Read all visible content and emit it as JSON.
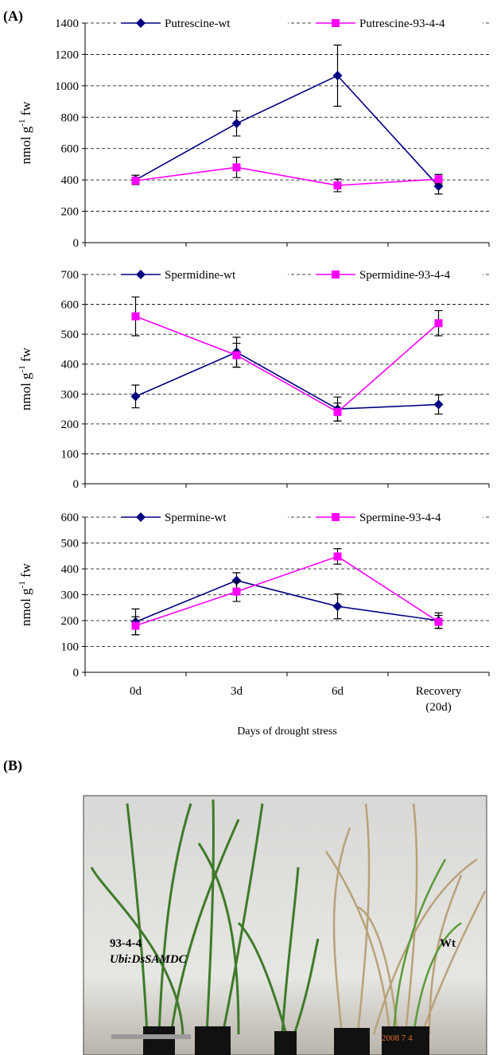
{
  "panels": {
    "a_label": "(A)",
    "b_label": "(B)"
  },
  "chart_data": [
    {
      "type": "line",
      "y_label": "nmol g",
      "y_label_sup": "-1",
      "y_label_unit": "fw",
      "categories": [
        null,
        null,
        null,
        null
      ],
      "ylim": [
        0,
        1400
      ],
      "yticks": [
        0,
        200,
        400,
        600,
        800,
        1000,
        1200,
        1400
      ],
      "grid": true,
      "legend": "top",
      "series": [
        {
          "name": "Putrescine-wt",
          "color": "#000080",
          "marker": "diamond",
          "values": [
            400,
            760,
            1065,
            360
          ],
          "errors": [
            30,
            80,
            195,
            50
          ]
        },
        {
          "name": "Putrescine-93-4-4",
          "color": "#ff00ff",
          "marker": "square",
          "values": [
            395,
            480,
            365,
            405
          ],
          "errors": [
            20,
            65,
            40,
            30
          ]
        }
      ]
    },
    {
      "type": "line",
      "y_label": "nmol g",
      "y_label_sup": "-1",
      "y_label_unit": "fw",
      "categories": [
        null,
        null,
        null,
        null
      ],
      "ylim": [
        0,
        700
      ],
      "yticks": [
        0,
        100,
        200,
        300,
        400,
        500,
        600,
        700
      ],
      "grid": true,
      "legend": "top",
      "series": [
        {
          "name": "Spermidine-wt",
          "color": "#000080",
          "marker": "diamond",
          "values": [
            292,
            440,
            250,
            265
          ],
          "errors": [
            38,
            50,
            40,
            32
          ]
        },
        {
          "name": "Spermidine-93-4-4",
          "color": "#ff00ff",
          "marker": "square",
          "values": [
            560,
            430,
            240,
            537
          ],
          "errors": [
            65,
            40,
            30,
            42
          ]
        }
      ]
    },
    {
      "type": "line",
      "y_label": "nmol g",
      "y_label_sup": "-1",
      "y_label_unit": "fw",
      "x_label": "Days of drought stress",
      "categories": [
        "0d",
        "3d",
        "6d",
        "Recovery\n(20d)"
      ],
      "ylim": [
        0,
        600
      ],
      "yticks": [
        0,
        100,
        200,
        300,
        400,
        500,
        600
      ],
      "grid": true,
      "legend": "top",
      "series": [
        {
          "name": "Spermine-wt",
          "color": "#000080",
          "marker": "diamond",
          "values": [
            195,
            355,
            255,
            200
          ],
          "errors": [
            50,
            30,
            48,
            30
          ]
        },
        {
          "name": "Spermine-93-4-4",
          "color": "#ff00ff",
          "marker": "square",
          "values": [
            180,
            312,
            448,
            195
          ],
          "errors": [
            35,
            38,
            30,
            25
          ]
        }
      ]
    }
  ],
  "photo": {
    "line_label": "93-4-4",
    "construct": "Ubi:DsSAMDC",
    "control_label": "Wt",
    "date_stamp": "2008 7 4"
  }
}
